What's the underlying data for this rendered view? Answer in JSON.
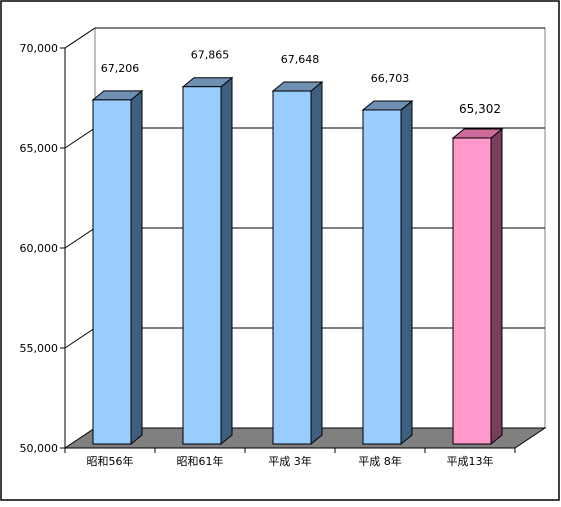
{
  "chart_data": {
    "type": "bar",
    "title": "",
    "xlabel": "",
    "ylabel": "",
    "categories": [
      "昭和56年",
      "昭和61年",
      "平成 3年",
      "平成 8年",
      "平成13年"
    ],
    "values": [
      67206,
      67865,
      67648,
      66703,
      65302
    ],
    "value_labels": [
      "67,206",
      "67,865",
      "67,648",
      "66,703",
      "65,302"
    ],
    "ylim": [
      50000,
      70000
    ],
    "yticks": [
      50000,
      55000,
      60000,
      65000,
      70000
    ],
    "ytick_labels": [
      "50,000",
      "55,000",
      "60,000",
      "65,000",
      "70,000"
    ],
    "grid": true,
    "legend": "none",
    "style": "3d",
    "colors": {
      "bar_front": "#99ccff",
      "bar_side": "#3e5f80",
      "bar_top": "#6f8fb3",
      "highlight_front": "#ff99cc",
      "highlight_side": "#7a3d5c",
      "highlight_top": "#cc6a9a",
      "floor": "#808080",
      "grid": "#000000"
    },
    "highlight_index": 4
  }
}
